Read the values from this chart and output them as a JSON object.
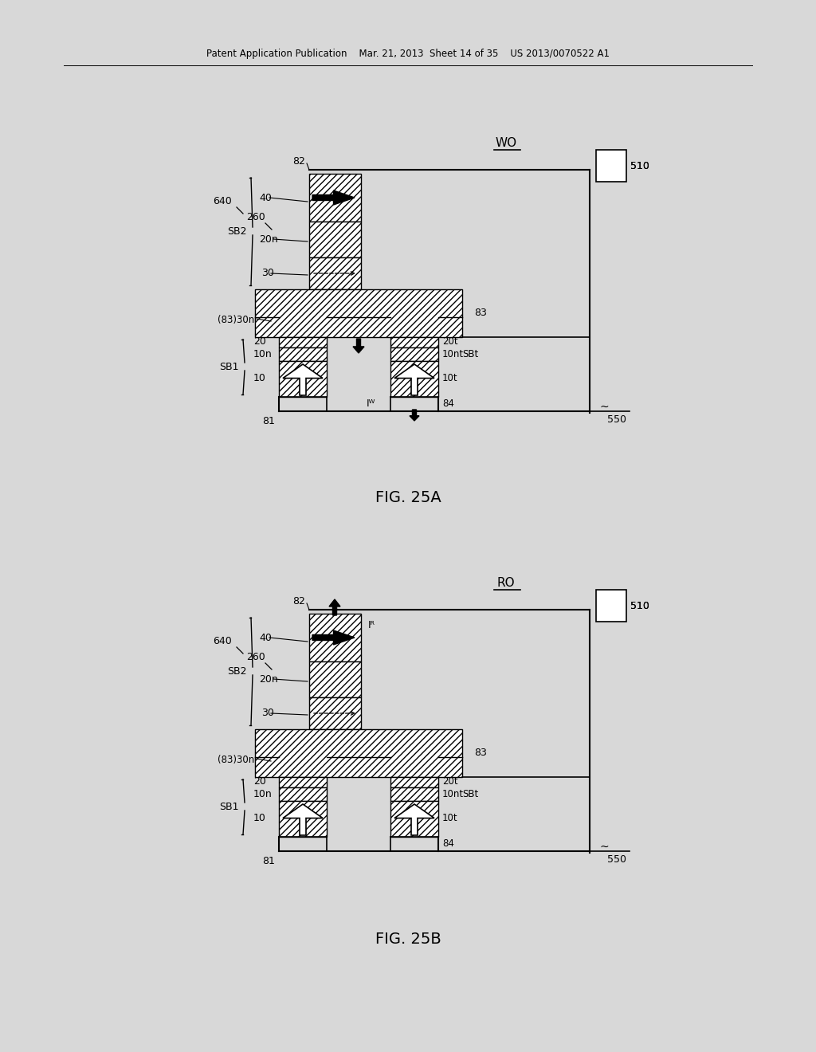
{
  "bg_color": "#d8d8d8",
  "fig_bg": "#d8d8d8",
  "header": "Patent Application Publication    Mar. 21, 2013  Sheet 14 of 35    US 2013/0070522 A1",
  "fig_a_caption": "FIG. 25A",
  "fig_b_caption": "FIG. 25B",
  "wo_label": "WO",
  "ro_label": "RO",
  "hatch_pattern": "////",
  "hatch_color": "#aaaaaa"
}
